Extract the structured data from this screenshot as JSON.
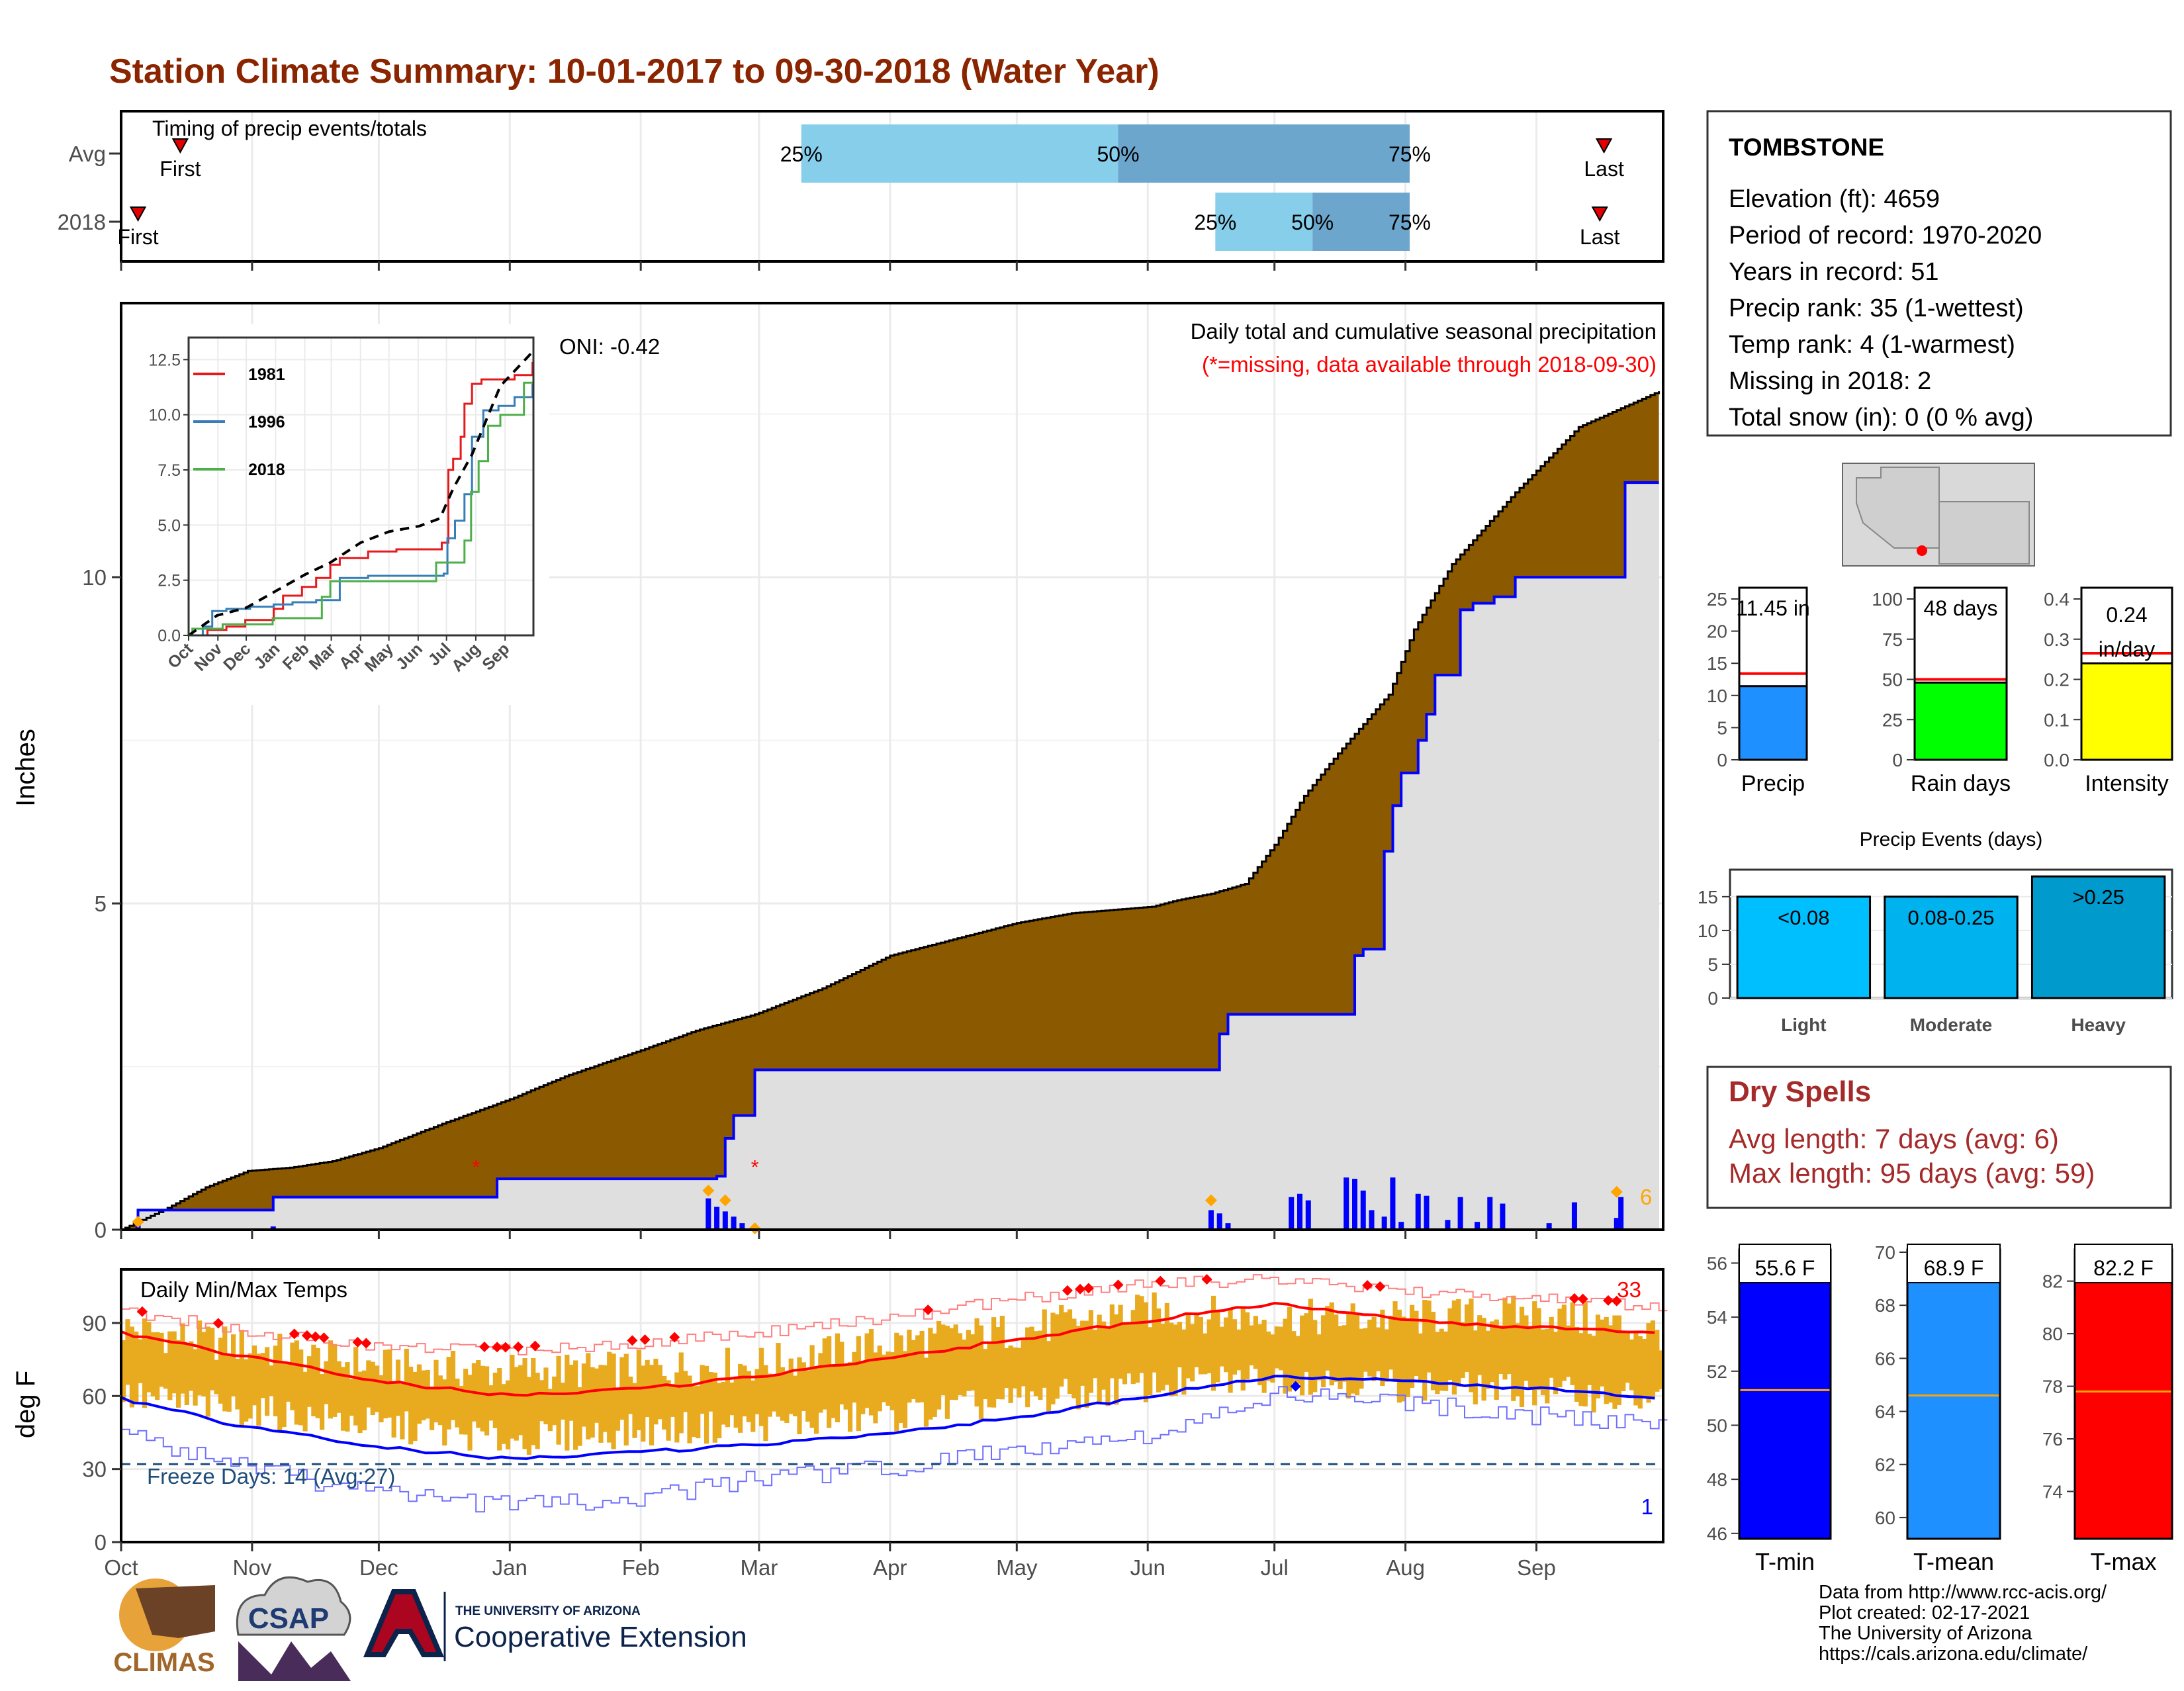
{
  "page": {
    "title": "Station Climate Summary: 10-01-2017 to 09-30-2018 (Water Year)",
    "colors": {
      "title": "#8b2500",
      "cum_fill": "#8b5a00",
      "obs_line": "#0000ff",
      "freeze": "#1f4e79"
    }
  },
  "timing": {
    "label": "Timing of precip events/totals",
    "rows": [
      {
        "label": "Avg",
        "first_label": "First",
        "last_label": "Last",
        "first_day": 14,
        "last_day": 351,
        "q25_day": 161,
        "q50_day": 236,
        "q75_day": 305,
        "q25_label": "25%",
        "q50_label": "50%",
        "q75_label": "75%"
      },
      {
        "label": "2018",
        "first_label": "First",
        "last_label": "Last",
        "first_day": 4,
        "last_day": 350,
        "q25_day": 259,
        "q50_day": 282,
        "q75_day": 305,
        "q25_label": "25%",
        "q50_label": "50%",
        "q75_label": "75%"
      }
    ]
  },
  "main": {
    "ylabel": "Inches",
    "yticks": [
      0,
      5,
      10
    ],
    "ylim": [
      0,
      14.2
    ],
    "title": "Daily total and cumulative seasonal precipitation",
    "subtitle": "(*=missing, data available through 2018-09-30)",
    "oni": "ONI: -0.42",
    "annotation": "6"
  },
  "inset": {
    "yticks": [
      "0.0",
      "2.5",
      "5.0",
      "7.5",
      "10.0",
      "12.5"
    ],
    "months": [
      "Oct",
      "Nov",
      "Dec",
      "Jan",
      "Feb",
      "Mar",
      "Apr",
      "May",
      "Jun",
      "Jul",
      "Aug",
      "Sep"
    ],
    "legend": [
      {
        "name": "1981",
        "color": "#e41a1c"
      },
      {
        "name": "1996",
        "color": "#377eb8"
      },
      {
        "name": "2018",
        "color": "#4daf4a"
      }
    ]
  },
  "temps": {
    "title": "Daily Min/Max Temps",
    "ylabel": "deg F",
    "yticks": [
      0,
      30,
      60,
      90
    ],
    "freeze_label": "Freeze Days: 14 (Avg:27)",
    "top_count": "33",
    "bottom_count": "1",
    "months": [
      "Oct",
      "Nov",
      "Dec",
      "Jan",
      "Feb",
      "Mar",
      "Apr",
      "May",
      "Jun",
      "Jul",
      "Aug",
      "Sep"
    ]
  },
  "station": {
    "name": "TOMBSTONE",
    "lines": [
      "Elevation (ft): 4659",
      "Period of record: 1970-2020",
      "Years in record: 51",
      "Precip rank: 35 (1-wettest)",
      "Temp rank: 4 (1-warmest)",
      "Missing in 2018: 2",
      "Total snow (in): 0 (0 % avg)"
    ]
  },
  "small_bars": [
    {
      "name": "Precip",
      "value_label": "11.45 in",
      "value": 11.45,
      "avg": 13.4,
      "ymax": 25,
      "ticks": [
        "0",
        "5",
        "10",
        "15",
        "20",
        "25"
      ],
      "color": "#1e90ff"
    },
    {
      "name": "Rain days",
      "value_label": "48 days",
      "value": 48,
      "avg": 50,
      "ymax": 100,
      "ticks": [
        "0",
        "25",
        "50",
        "75",
        "100"
      ],
      "color": "#00ff00"
    },
    {
      "name": "Intensity",
      "value_label": "0.24",
      "value_label2": "in/day",
      "value": 0.24,
      "avg": 0.265,
      "ymax": 0.4,
      "ticks": [
        "0.0",
        "0.1",
        "0.2",
        "0.3",
        "0.4"
      ],
      "color": "#ffff00"
    }
  ],
  "events": {
    "title": "Precip Events (days)",
    "ticks": [
      "0",
      "5",
      "10",
      "15"
    ],
    "bars": [
      {
        "name": "Light",
        "label": "<0.08",
        "value": 15,
        "color": "#00bfff"
      },
      {
        "name": "Moderate",
        "label": "0.08-0.25",
        "value": 15,
        "color": "#00b2ee"
      },
      {
        "name": "Heavy",
        "label": ">0.25",
        "value": 18,
        "color": "#009acd"
      }
    ]
  },
  "dry": {
    "title": "Dry Spells",
    "avg_line": "Avg length: 7 days (avg: 6)",
    "max_line": "Max length: 95 days (avg: 59)"
  },
  "temp_bars": [
    {
      "name": "T-min",
      "label": "55.6 F",
      "value": 55.6,
      "avg": 51.3,
      "ymin": 45.8,
      "ymax": 56.5,
      "ticks": [
        "46",
        "48",
        "50",
        "52",
        "54",
        "56"
      ],
      "color": "#0000ff"
    },
    {
      "name": "T-mean",
      "label": "68.9 F",
      "value": 68.9,
      "avg": 64.6,
      "ymin": 59.2,
      "ymax": 70.1,
      "ticks": [
        "60",
        "62",
        "64",
        "66",
        "68",
        "70"
      ],
      "color": "#1e90ff"
    },
    {
      "name": "T-max",
      "label": "82.2 F",
      "value": 82.2,
      "avg": 77.8,
      "ymin": 72.2,
      "ymax": 83.2,
      "ticks": [
        "74",
        "76",
        "78",
        "80",
        "82"
      ],
      "color": "#ff0000"
    }
  ],
  "footer": {
    "lines": [
      "Data from http://www.rcc-acis.org/",
      "Plot created: 02-17-2021",
      "The University of Arizona",
      "https://cals.arizona.edu/climate/"
    ],
    "climas": "CLIMAS",
    "csap": "CSAP",
    "ua_small": "THE UNIVERSITY OF ARIZONA",
    "ua_big": "Cooperative Extension"
  },
  "chart_data": [
    {
      "type": "area",
      "title": "Daily total and cumulative seasonal precipitation",
      "ylabel": "Inches",
      "ylim": [
        0,
        14.2
      ],
      "x_unit": "day of water year (0 = Oct 1)",
      "series": [
        {
          "name": "cumulative average",
          "x": [
            0,
            10,
            20,
            30,
            40,
            50,
            61,
            75,
            92,
            105,
            123,
            136,
            150,
            166,
            182,
            200,
            212,
            225,
            244,
            250,
            258,
            266,
            273,
            280,
            288,
            300,
            306,
            315,
            330,
            345,
            364
          ],
          "y": [
            0,
            0.3,
            0.65,
            0.9,
            0.95,
            1.05,
            1.25,
            1.6,
            2.0,
            2.35,
            2.75,
            3.05,
            3.3,
            3.7,
            4.2,
            4.5,
            4.7,
            4.85,
            4.95,
            5.05,
            5.15,
            5.3,
            5.9,
            6.65,
            7.3,
            8.2,
            9.2,
            10.2,
            11.3,
            12.3,
            12.85
          ]
        },
        {
          "name": "cumulative observed 2018",
          "x": [
            0,
            4,
            14,
            22,
            29,
            36,
            77,
            89,
            141,
            143,
            145,
            150,
            258,
            260,
            262,
            290,
            292,
            294,
            299,
            301,
            303,
            307,
            309,
            311,
            317,
            320,
            325,
            330,
            355,
            356,
            364
          ],
          "y": [
            0,
            0.3,
            0.3,
            0.3,
            0.3,
            0.5,
            0.5,
            0.78,
            0.82,
            1.4,
            1.75,
            2.45,
            2.45,
            3.0,
            3.3,
            3.3,
            4.2,
            4.3,
            5.8,
            6.5,
            7.0,
            7.5,
            7.9,
            8.5,
            9.5,
            9.6,
            9.7,
            10.0,
            10.0,
            11.45,
            11.45
          ]
        },
        {
          "name": "daily precip",
          "x": [
            4,
            36,
            139,
            141,
            143,
            145,
            147,
            258,
            260,
            262,
            277,
            279,
            281,
            290,
            292,
            294,
            296,
            299,
            301,
            303,
            307,
            309,
            314,
            317,
            321,
            324,
            327,
            338,
            344,
            354,
            355
          ],
          "y": [
            0.1,
            0.05,
            0.48,
            0.35,
            0.28,
            0.2,
            0.1,
            0.3,
            0.25,
            0.1,
            0.5,
            0.55,
            0.45,
            0.8,
            0.78,
            0.6,
            0.3,
            0.2,
            0.8,
            0.12,
            0.55,
            0.52,
            0.15,
            0.5,
            0.12,
            0.5,
            0.4,
            0.1,
            0.42,
            0.18,
            0.5
          ]
        }
      ]
    },
    {
      "type": "line",
      "title": "",
      "xlabel": "",
      "ylabel": "",
      "ylim": [
        0,
        13.5
      ],
      "x_unit": "day of water year (0 = Oct 1)",
      "series": [
        {
          "name": "1981",
          "x": [
            0,
            20,
            40,
            60,
            90,
            100,
            120,
            135,
            150,
            160,
            190,
            220,
            250,
            268,
            275,
            280,
            288,
            292,
            300,
            305,
            310,
            330,
            345,
            364
          ],
          "y": [
            0,
            0.25,
            0.4,
            0.7,
            1.2,
            1.8,
            2.2,
            2.6,
            3.2,
            3.5,
            3.8,
            3.9,
            3.9,
            4.2,
            7.5,
            8.0,
            9.0,
            10.5,
            11.4,
            11.4,
            11.6,
            11.6,
            11.8,
            12.4
          ]
        },
        {
          "name": "1996",
          "x": [
            0,
            15,
            25,
            40,
            65,
            90,
            110,
            135,
            160,
            190,
            250,
            270,
            274,
            282,
            292,
            300,
            312,
            328,
            345,
            364
          ],
          "y": [
            0,
            0.4,
            1.1,
            1.2,
            1.3,
            1.4,
            1.5,
            1.6,
            2.6,
            2.7,
            2.7,
            2.8,
            4.4,
            5.2,
            6.4,
            9.0,
            10.2,
            10.4,
            10.8,
            11.4
          ]
        },
        {
          "name": "2018",
          "x": [
            0,
            4,
            36,
            89,
            141,
            150,
            258,
            262,
            292,
            299,
            307,
            317,
            330,
            355,
            364
          ],
          "y": [
            0,
            0.3,
            0.5,
            0.78,
            1.75,
            2.45,
            2.45,
            3.3,
            4.3,
            6.5,
            7.9,
            9.5,
            10.0,
            11.45,
            11.45
          ]
        },
        {
          "name": "average",
          "x": [
            0,
            30,
            61,
            92,
            123,
            150,
            182,
            212,
            244,
            266,
            280,
            300,
            330,
            364
          ],
          "y": [
            0,
            0.9,
            1.25,
            2.0,
            2.75,
            3.3,
            4.2,
            4.7,
            4.95,
            5.3,
            6.65,
            8.2,
            11.3,
            12.85
          ]
        }
      ]
    },
    {
      "type": "line",
      "title": "Daily Min/Max Temps",
      "ylabel": "deg F",
      "ylim": [
        0,
        112
      ],
      "x_unit": "day of water year (0 = Oct 1)",
      "series": [
        {
          "name": "average max",
          "x": [
            0,
            30,
            61,
            92,
            123,
            151,
            182,
            212,
            243,
            273,
            304,
            335,
            364
          ],
          "y": [
            86,
            76,
            66,
            60,
            63,
            68,
            76,
            83,
            91,
            98,
            91,
            88,
            86
          ]
        },
        {
          "name": "average min",
          "x": [
            0,
            30,
            61,
            92,
            123,
            151,
            182,
            212,
            243,
            273,
            304,
            335,
            364
          ],
          "y": [
            59,
            47,
            39,
            34,
            37,
            40,
            45,
            51,
            60,
            68,
            66,
            63,
            59
          ]
        },
        {
          "name": "record max",
          "x": [
            0,
            30,
            61,
            92,
            123,
            151,
            182,
            212,
            243,
            273,
            304,
            335,
            364
          ],
          "y": [
            95,
            87,
            80,
            79,
            82,
            86,
            92,
            100,
            106,
            108,
            103,
            100,
            97
          ]
        },
        {
          "name": "record min",
          "x": [
            0,
            30,
            61,
            92,
            123,
            151,
            182,
            212,
            243,
            273,
            304,
            335,
            364
          ],
          "y": [
            45,
            30,
            20,
            15,
            18,
            26,
            30,
            38,
            44,
            60,
            57,
            52,
            49
          ]
        },
        {
          "name": "2018 max",
          "x": [
            0,
            30,
            61,
            92,
            123,
            151,
            182,
            212,
            243,
            273,
            304,
            335,
            364
          ],
          "y": [
            88,
            80,
            72,
            70,
            71,
            73,
            82,
            87,
            95,
            92,
            92,
            94,
            86
          ]
        },
        {
          "name": "2018 min",
          "x": [
            0,
            30,
            61,
            92,
            123,
            151,
            182,
            212,
            243,
            273,
            304,
            335,
            364
          ],
          "y": [
            60,
            54,
            48,
            42,
            46,
            48,
            52,
            58,
            64,
            68,
            64,
            62,
            58
          ]
        }
      ]
    },
    {
      "type": "bar",
      "categories": [
        "Precip",
        "Rain days",
        "Intensity"
      ],
      "values": [
        11.45,
        48,
        0.24
      ],
      "averages": [
        13.4,
        50,
        0.265
      ]
    },
    {
      "type": "bar",
      "title": "Precip Events (days)",
      "categories": [
        "Light",
        "Moderate",
        "Heavy"
      ],
      "values": [
        15,
        15,
        18
      ]
    },
    {
      "type": "bar",
      "categories": [
        "T-min",
        "T-mean",
        "T-max"
      ],
      "values": [
        55.6,
        68.9,
        82.2
      ],
      "averages": [
        51.3,
        64.6,
        77.8
      ]
    }
  ]
}
